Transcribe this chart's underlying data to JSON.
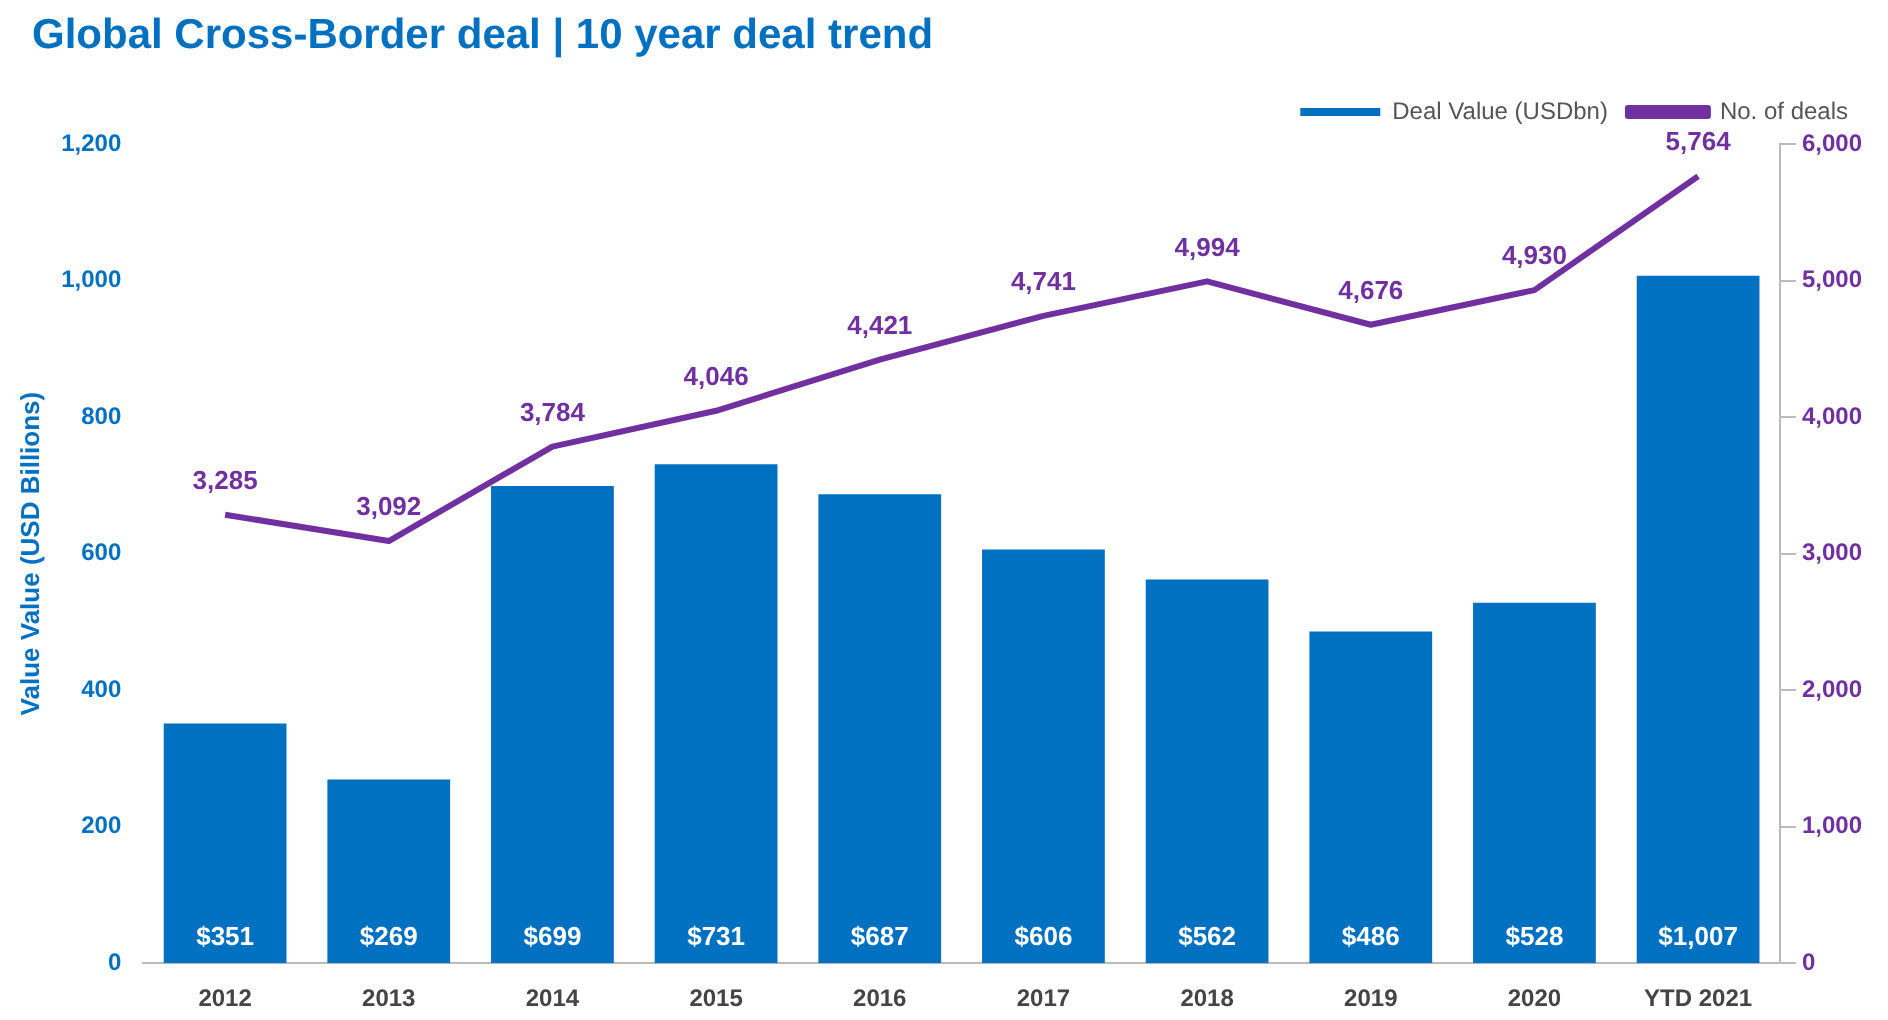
{
  "chart_data": {
    "type": "bar",
    "title": "Global Cross-Border deal | 10 year deal trend",
    "ylabel": "Value Value (USD Billions)",
    "categories": [
      "2012",
      "2013",
      "2014",
      "2015",
      "2016",
      "2017",
      "2018",
      "2019",
      "2020",
      "YTD 2021"
    ],
    "series": [
      {
        "name": "Deal Value (USDbn)",
        "color": "#0070c0",
        "values": [
          351,
          269,
          699,
          731,
          687,
          606,
          562,
          486,
          528,
          1007
        ],
        "value_labels": [
          "$351",
          "$269",
          "$699",
          "$731",
          "$687",
          "$606",
          "$562",
          "$486",
          "$528",
          "$1,007"
        ]
      },
      {
        "name": "No. of deals",
        "type": "line",
        "axis": "y2",
        "color": "#7030a0",
        "values": [
          3285,
          3092,
          3784,
          4046,
          4421,
          4741,
          4994,
          4676,
          4930,
          5764
        ],
        "value_labels": [
          "3,285",
          "3,092",
          "3,784",
          "4,046",
          "4,421",
          "4,741",
          "4,994",
          "4,676",
          "4,930",
          "5,764"
        ]
      }
    ],
    "ylim": [
      0,
      1200
    ],
    "yticks": [
      0,
      200,
      400,
      600,
      800,
      {
        "value": 1000,
        "label": "1,000"
      },
      {
        "value": 1200,
        "label": "1,200"
      }
    ],
    "y2lim": [
      0,
      6000
    ],
    "y2ticks": [
      0,
      {
        "value": 1000,
        "label": "1,000"
      },
      {
        "value": 2000,
        "label": "2,000"
      },
      {
        "value": 3000,
        "label": "3,000"
      },
      {
        "value": 4000,
        "label": "4,000"
      },
      {
        "value": 5000,
        "label": "5,000"
      },
      {
        "value": 6000,
        "label": "6,000"
      }
    ],
    "grid": false,
    "legend": "top right",
    "marker": "none",
    "line_style": "solid"
  }
}
